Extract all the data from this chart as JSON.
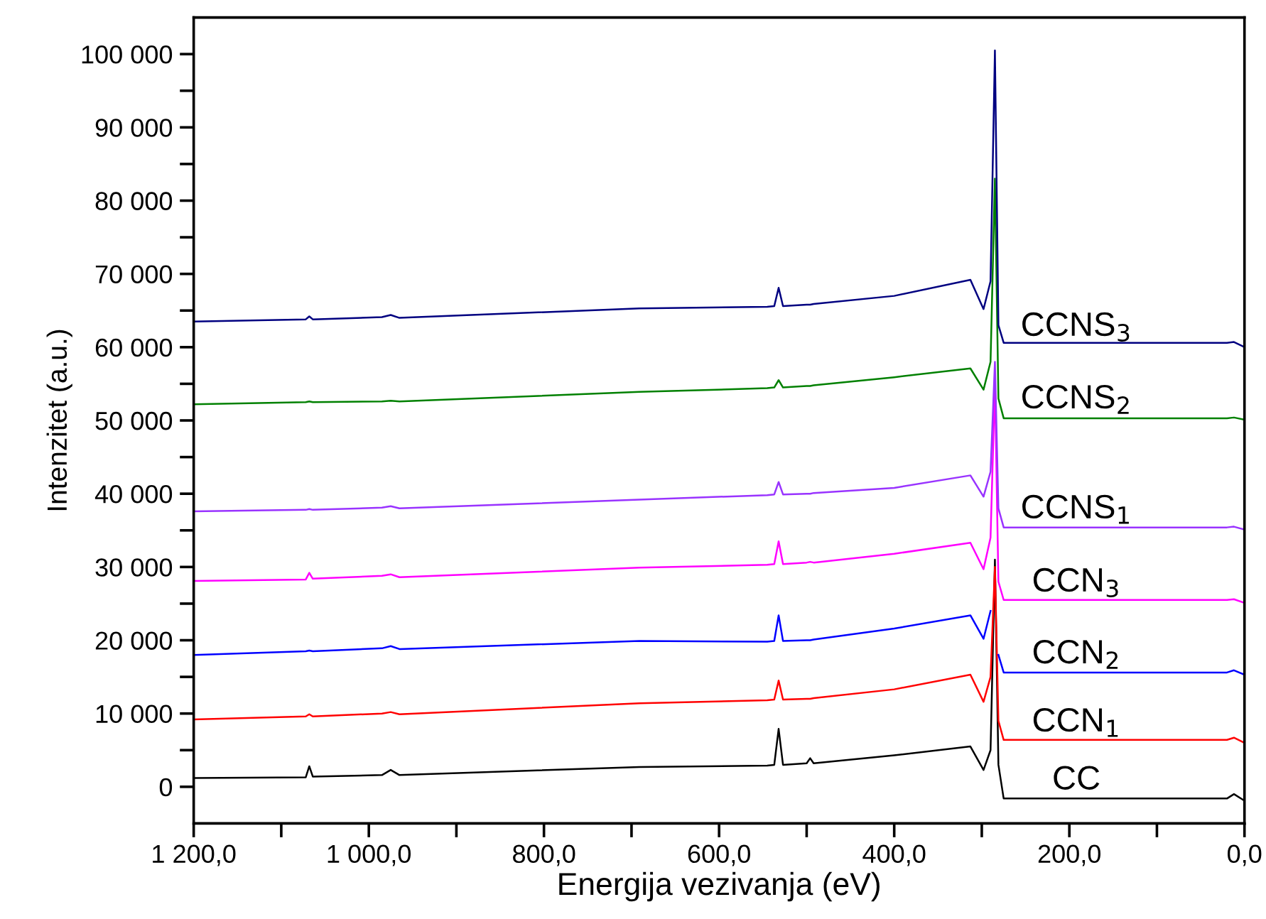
{
  "chart_data": {
    "type": "line",
    "xlabel": "Energija vezivanja (eV)",
    "ylabel": "Intenzitet (a.u.)",
    "x": [
      1200,
      1072,
      1068,
      1064,
      985,
      975,
      965,
      691,
      545,
      537,
      532,
      527,
      500,
      496,
      492,
      400,
      313,
      298,
      290,
      285,
      281,
      275,
      20,
      12,
      0
    ],
    "series": [
      {
        "name": "CC",
        "color": "#000000",
        "values": [
          1200,
          1300,
          2800,
          1400,
          1600,
          2300,
          1600,
          2700,
          2900,
          3000,
          7900,
          3000,
          3200,
          3900,
          3200,
          4300,
          5500,
          2300,
          5000,
          31000,
          3000,
          -1600,
          -1600,
          -1000,
          -1900
        ]
      },
      {
        "name": "CCN$_{1}$",
        "color": "#ff0000",
        "values": [
          9200,
          9600,
          9900,
          9600,
          10000,
          10200,
          9900,
          11400,
          11800,
          11900,
          14500,
          11900,
          12000,
          12000,
          12100,
          13300,
          15300,
          11600,
          15000,
          30000,
          9000,
          6400,
          6400,
          6700,
          6000
        ]
      },
      {
        "name": "CCN$_{2}$",
        "color": "#0000ff",
        "values": [
          18000,
          18500,
          18600,
          18500,
          18900,
          19200,
          18800,
          19900,
          19800,
          19900,
          23400,
          19900,
          20000,
          20000,
          20100,
          21600,
          23400,
          20200,
          24000,
          null,
          18000,
          15600,
          15600,
          15900,
          15300
        ]
      },
      {
        "name": "CCN$_{3}$",
        "color": "#ff00ff",
        "values": [
          28100,
          28300,
          29200,
          28400,
          28800,
          29000,
          28600,
          29900,
          30300,
          30400,
          33500,
          30400,
          30600,
          30700,
          30600,
          31800,
          33300,
          29700,
          34000,
          55000,
          28000,
          25500,
          25500,
          25600,
          25100
        ]
      },
      {
        "name": "CCNS$_{1}$",
        "color": "#9933ff",
        "values": [
          37600,
          37800,
          37900,
          37800,
          38100,
          38300,
          38000,
          39200,
          39800,
          39900,
          41600,
          39900,
          40000,
          40000,
          40100,
          40800,
          42500,
          39600,
          43000,
          58000,
          38000,
          35400,
          35400,
          35500,
          35100
        ]
      },
      {
        "name": "CCNS$_{2}$",
        "color": "#008000",
        "values": [
          52200,
          52500,
          52600,
          52500,
          52600,
          52700,
          52600,
          53900,
          54400,
          54500,
          55500,
          54500,
          54700,
          54700,
          54800,
          55900,
          57100,
          54200,
          58000,
          83000,
          53000,
          50300,
          50300,
          50400,
          50100
        ]
      },
      {
        "name": "CCNS$_{3}$",
        "color": "#000080",
        "values": [
          63500,
          63800,
          64200,
          63800,
          64100,
          64400,
          64000,
          65300,
          65500,
          65600,
          68100,
          65600,
          65800,
          65800,
          65900,
          67000,
          69200,
          65200,
          69000,
          100500,
          63000,
          60600,
          60600,
          60700,
          60000
        ]
      }
    ],
    "xlim": [
      1200,
      0
    ],
    "ylim": [
      -5000,
      105000
    ],
    "xticks": [
      {
        "value": 1200,
        "label": "1 200,0"
      },
      {
        "value": 1100,
        "label": null
      },
      {
        "value": 1000,
        "label": "1 000,0"
      },
      {
        "value": 900,
        "label": null
      },
      {
        "value": 800,
        "label": "800,0"
      },
      {
        "value": 700,
        "label": null
      },
      {
        "value": 600,
        "label": "600,0"
      },
      {
        "value": 500,
        "label": null
      },
      {
        "value": 400,
        "label": "400,0"
      },
      {
        "value": 300,
        "label": null
      },
      {
        "value": 200,
        "label": "200,0"
      },
      {
        "value": 100,
        "label": null
      },
      {
        "value": 0,
        "label": "0,0"
      }
    ],
    "yticks": [
      0,
      {
        "value": 5000,
        "label": null
      },
      {
        "value": 10000,
        "label": "10 000"
      },
      {
        "value": 15000,
        "label": null
      },
      {
        "value": 20000,
        "label": "20 000"
      },
      {
        "value": 25000,
        "label": null
      },
      {
        "value": 30000,
        "label": "30 000"
      },
      {
        "value": 35000,
        "label": null
      },
      {
        "value": 40000,
        "label": "40 000"
      },
      {
        "value": 45000,
        "label": null
      },
      {
        "value": 50000,
        "label": "50 000"
      },
      {
        "value": 55000,
        "label": null
      },
      {
        "value": 60000,
        "label": "60 000"
      },
      {
        "value": 65000,
        "label": null
      },
      {
        "value": 70000,
        "label": "70 000"
      },
      {
        "value": 75000,
        "label": null
      },
      {
        "value": 80000,
        "label": "80 000"
      },
      {
        "value": 85000,
        "label": null
      },
      {
        "value": 90000,
        "label": "90 000"
      },
      {
        "value": 95000,
        "label": null
      },
      {
        "value": 100000,
        "label": "100 000"
      }
    ],
    "grid": false,
    "legend": false,
    "marker": "none",
    "line_style": "solid"
  }
}
